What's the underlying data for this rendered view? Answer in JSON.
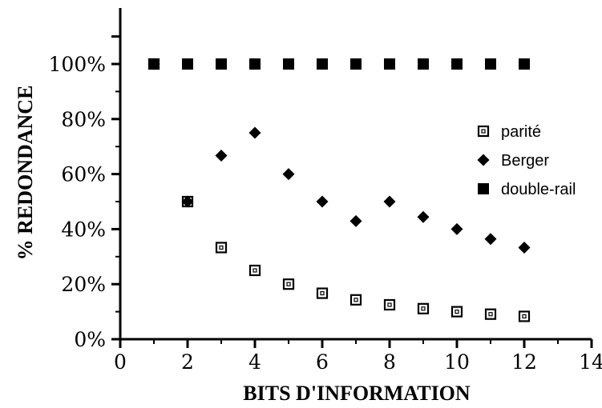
{
  "chart_data": {
    "type": "scatter",
    "title": "",
    "xlabel": "BITS D'INFORMATION",
    "ylabel": "% REDONDANCE",
    "xlim": [
      0,
      14
    ],
    "ylim": [
      0,
      100
    ],
    "ytick_max_display": 110,
    "x_ticks": [
      0,
      2,
      4,
      6,
      8,
      10,
      12,
      14
    ],
    "x_tick_labels": [
      "0",
      "2",
      "4",
      "6",
      "8",
      "10",
      "12",
      "14"
    ],
    "y_ticks": [
      0,
      20,
      40,
      60,
      80,
      100
    ],
    "y_tick_labels": [
      "0%",
      "20%",
      "40%",
      "60%",
      "80%",
      "100%"
    ],
    "grid": false,
    "legend_position": "right",
    "series": [
      {
        "name": "parité",
        "marker": "open-square",
        "x": [
          1,
          2,
          3,
          4,
          5,
          6,
          7,
          8,
          9,
          10,
          11,
          12
        ],
        "values": [
          100,
          50,
          33.3,
          25,
          20,
          16.7,
          14.3,
          12.5,
          11.1,
          10,
          9.1,
          8.3
        ]
      },
      {
        "name": "Berger",
        "marker": "diamond",
        "x": [
          1,
          2,
          3,
          4,
          5,
          6,
          7,
          8,
          9,
          10,
          11,
          12
        ],
        "values": [
          100,
          50,
          66.7,
          75,
          60,
          50,
          42.9,
          50,
          44.4,
          40,
          36.4,
          33.3
        ]
      },
      {
        "name": "double-rail",
        "marker": "filled-square",
        "x": [
          1,
          2,
          3,
          4,
          5,
          6,
          7,
          8,
          9,
          10,
          11,
          12
        ],
        "values": [
          100,
          100,
          100,
          100,
          100,
          100,
          100,
          100,
          100,
          100,
          100,
          100
        ]
      }
    ]
  }
}
